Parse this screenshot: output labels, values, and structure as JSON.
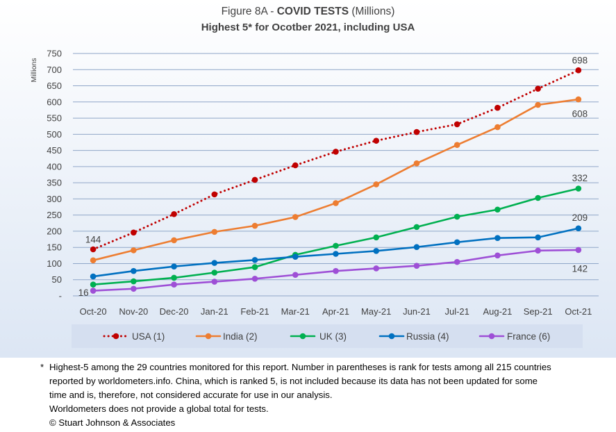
{
  "chart_data": {
    "type": "line",
    "title": "Figure 8A - COVID TESTS (Millions)",
    "title_prefix": "Figure 8A - ",
    "title_bold": "COVID TESTS",
    "title_suffix": " (Millions)",
    "subtitle": "Highest 5* for Ocotber 2021, including USA",
    "xlabel": "",
    "ylabel": "Millions",
    "ylim": [
      0,
      750
    ],
    "yticks": [
      0,
      50,
      100,
      150,
      200,
      250,
      300,
      350,
      400,
      450,
      500,
      550,
      600,
      650,
      700,
      750
    ],
    "ytick_labels": [
      "-",
      "50",
      "100",
      "150",
      "200",
      "250",
      "300",
      "350",
      "400",
      "450",
      "500",
      "550",
      "600",
      "650",
      "700",
      "750"
    ],
    "grid": true,
    "legend_position": "bottom",
    "categories": [
      "Oct-20",
      "Nov-20",
      "Dec-20",
      "Jan-21",
      "Feb-21",
      "Mar-21",
      "Apr-21",
      "May-21",
      "Jun-21",
      "Jul-21",
      "Aug-21",
      "Sep-21",
      "Oct-21"
    ],
    "series": [
      {
        "name": "USA (1)",
        "color": "#c00000",
        "dash": true,
        "values": [
          144,
          196,
          253,
          314,
          359,
          404,
          446,
          480,
          507,
          531,
          582,
          641,
          698
        ]
      },
      {
        "name": "India (2)",
        "color": "#ed7d31",
        "dash": false,
        "values": [
          110,
          141,
          172,
          198,
          217,
          244,
          287,
          345,
          410,
          467,
          522,
          591,
          608
        ]
      },
      {
        "name": "UK (3)",
        "color": "#00b050",
        "dash": false,
        "values": [
          35,
          45,
          56,
          72,
          89,
          127,
          155,
          181,
          213,
          245,
          267,
          303,
          332
        ]
      },
      {
        "name": "Russia (4)",
        "color": "#0070c0",
        "dash": false,
        "values": [
          60,
          77,
          91,
          102,
          111,
          121,
          130,
          139,
          151,
          166,
          179,
          181,
          209
        ]
      },
      {
        "name": "France (6)",
        "color": "#9e4fd6",
        "dash": false,
        "values": [
          16,
          22,
          35,
          44,
          53,
          65,
          77,
          85,
          93,
          105,
          125,
          140,
          142
        ]
      }
    ],
    "annotations": [
      {
        "text": "144",
        "series": 0,
        "index": 0
      },
      {
        "text": "16",
        "series": 4,
        "index": 0
      },
      {
        "text": "698",
        "series": 0,
        "index": 12
      },
      {
        "text": "608",
        "series": 1,
        "index": 12
      },
      {
        "text": "332",
        "series": 2,
        "index": 12
      },
      {
        "text": "209",
        "series": 3,
        "index": 12
      },
      {
        "text": "142",
        "series": 4,
        "index": 12
      }
    ]
  },
  "colors": {
    "chart_background_top": "#ffffff",
    "chart_background_bottom": "#dce6f4",
    "legend_background": "#d5dff0",
    "gridline": "#8fa6c8"
  },
  "footnote": {
    "marker": "*",
    "line1": "Highest-5 among the 29 countries monitored for this report. Number in parentheses is rank for tests among all 215  countries",
    "line2": "reported by worldometers.info. China, which is ranked 5, is not included because its data has not been updated for some",
    "line3": "time and is, therefore, not considered accurate for use in our analysis.",
    "line4": "Worldometers does not provide a global total for tests.",
    "line5": "© Stuart Johnson & Associates"
  }
}
